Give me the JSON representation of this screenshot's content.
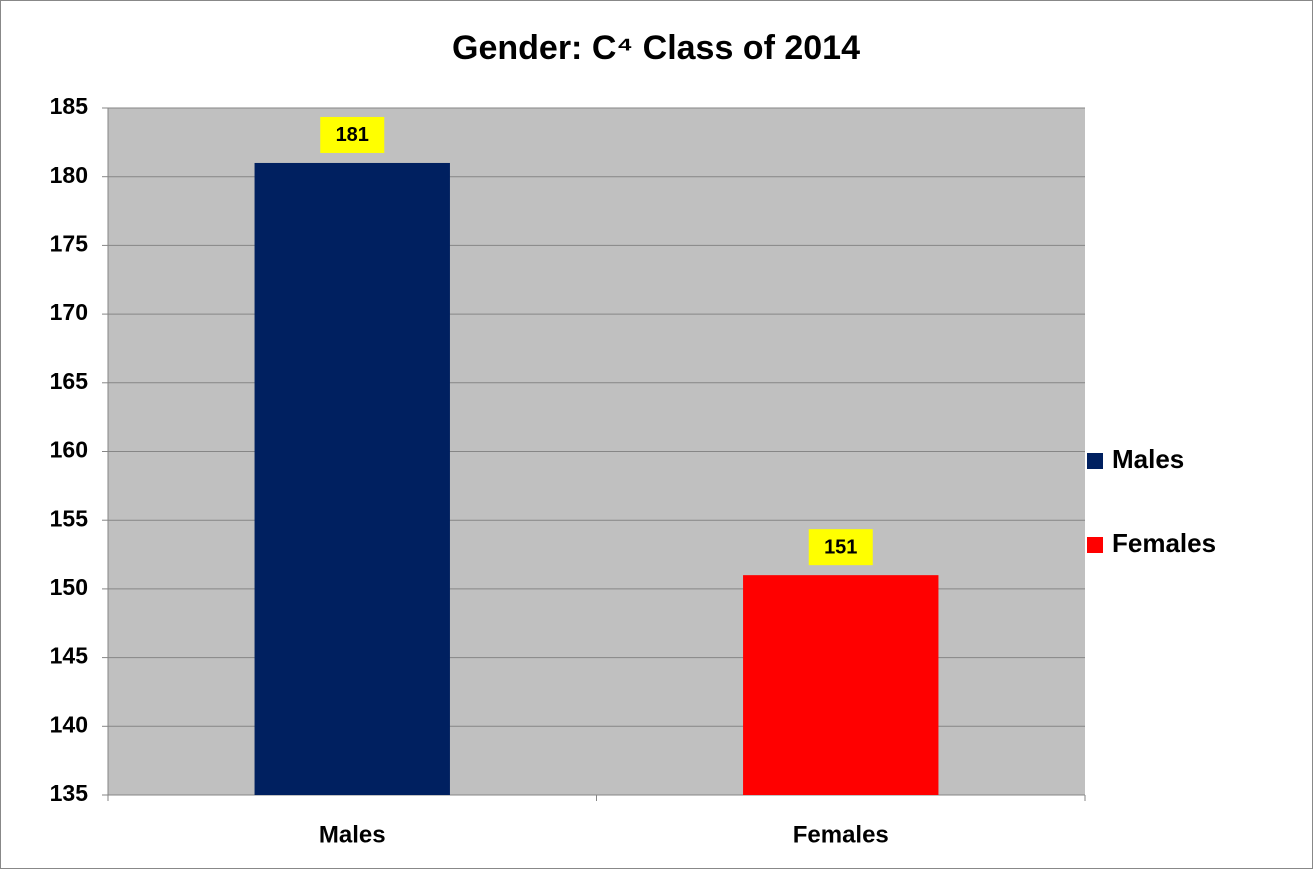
{
  "chart_data": {
    "type": "bar",
    "title": "Gender:  C⁴ Class of 2014",
    "categories": [
      "Males",
      "Females"
    ],
    "values": [
      181,
      151
    ],
    "colors": [
      "#002060",
      "#ff0000"
    ],
    "ylim": [
      135,
      185
    ],
    "yticks": [
      135,
      140,
      145,
      150,
      155,
      160,
      165,
      170,
      175,
      180,
      185
    ],
    "grid": true,
    "legend": "right"
  }
}
